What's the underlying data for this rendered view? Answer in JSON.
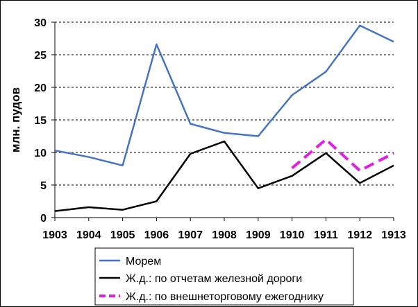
{
  "chart_data": {
    "type": "line",
    "title": "",
    "xlabel": "",
    "ylabel": "млн. пудов",
    "x": [
      1903,
      1904,
      1905,
      1906,
      1907,
      1908,
      1909,
      1910,
      1911,
      1912,
      1913
    ],
    "ylim": [
      0,
      30
    ],
    "yticks": [
      0,
      5,
      10,
      15,
      20,
      25,
      30
    ],
    "grid": "horizontal dashed",
    "legend_position": "bottom",
    "series": [
      {
        "name": "Морем",
        "color": "#4472C4",
        "dash": "solid",
        "values": [
          10.3,
          9.3,
          8.0,
          26.6,
          14.4,
          13.0,
          12.5,
          18.8,
          22.4,
          29.5,
          27.0
        ]
      },
      {
        "name": "Ж.д.: по отчетам железной дороги",
        "color": "#000000",
        "dash": "solid",
        "values": [
          1.0,
          1.6,
          1.2,
          2.5,
          9.8,
          11.7,
          4.5,
          6.4,
          9.9,
          5.3,
          8.0
        ]
      },
      {
        "name": "Ж.д.: по внешнеторговому ежегоднику",
        "color": "#E020E0",
        "dash": "dashed",
        "values": [
          null,
          null,
          null,
          null,
          null,
          null,
          null,
          7.6,
          12.0,
          7.2,
          9.9
        ]
      }
    ]
  }
}
